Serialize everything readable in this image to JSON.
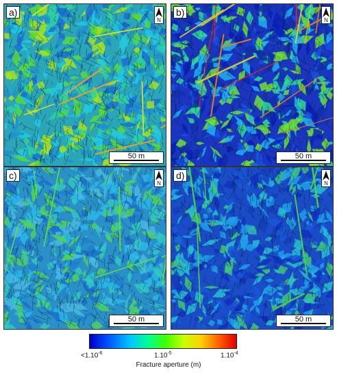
{
  "panels": [
    {
      "label": "a)",
      "north": "N",
      "scale": "50 m",
      "palette": "mid"
    },
    {
      "label": "b)",
      "north": "N",
      "scale": "50 m",
      "palette": "wide"
    },
    {
      "label": "c)",
      "north": "N",
      "scale": "50 m",
      "palette": "low"
    },
    {
      "label": "d)",
      "north": "N",
      "scale": "50 m",
      "palette": "lowblue"
    }
  ],
  "colorbar": {
    "title": "Fracture aperture (m)",
    "ticks": [
      {
        "base": "<1.10",
        "exp": "-6"
      },
      {
        "base": "1.10",
        "exp": "-5"
      },
      {
        "base": "1.10",
        "exp": "-4"
      }
    ],
    "colors": [
      "#0000c8",
      "#00c8ff",
      "#40ff00",
      "#ffd000",
      "#e00000"
    ]
  }
}
